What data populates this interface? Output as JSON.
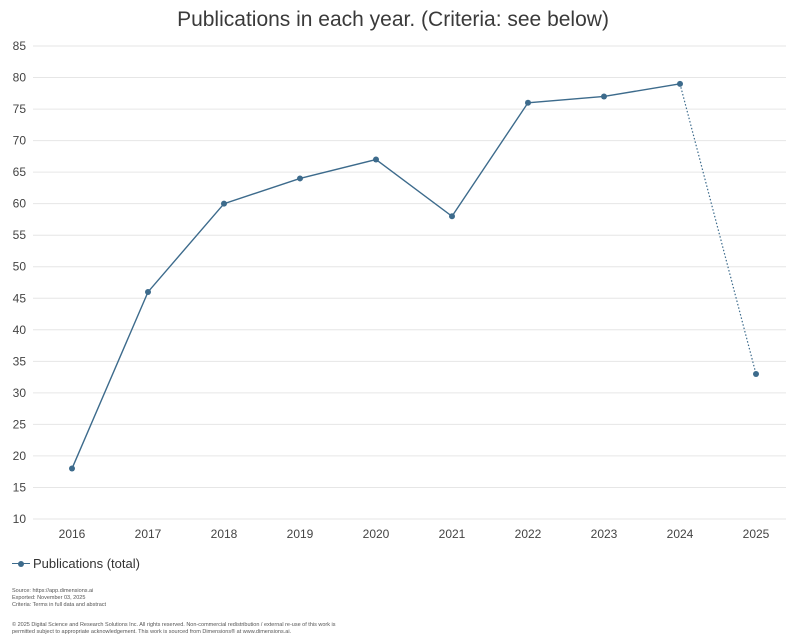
{
  "chart_data": {
    "type": "line",
    "title": "Publications in each year. (Criteria: see below)",
    "categories": [
      "2016",
      "2017",
      "2018",
      "2019",
      "2020",
      "2021",
      "2022",
      "2023",
      "2024",
      "2025"
    ],
    "series": [
      {
        "name": "Publications (total)",
        "values": [
          18,
          46,
          60,
          64,
          67,
          58,
          76,
          77,
          79,
          33
        ],
        "color": "#3d6b8c",
        "dotted_last_segment": true
      }
    ],
    "ylim": [
      10,
      85
    ],
    "yticks": [
      10,
      15,
      20,
      25,
      30,
      35,
      40,
      45,
      50,
      55,
      60,
      65,
      70,
      75,
      80,
      85
    ],
    "grid": true,
    "legend_position": "bottom-left"
  },
  "footer": {
    "source_lines": [
      "Source: https://app.dimensions.ai",
      "Exported: November 03, 2025",
      "Criteria: Terms in full data and abstract"
    ],
    "copyright_lines": [
      "© 2025 Digital Science and Research Solutions Inc. All rights reserved. Non-commercial redistribution / external re-use of this work is",
      "permitted subject to appropriate acknowledgement. This work is sourced from Dimensions® at www.dimensions.ai."
    ]
  }
}
